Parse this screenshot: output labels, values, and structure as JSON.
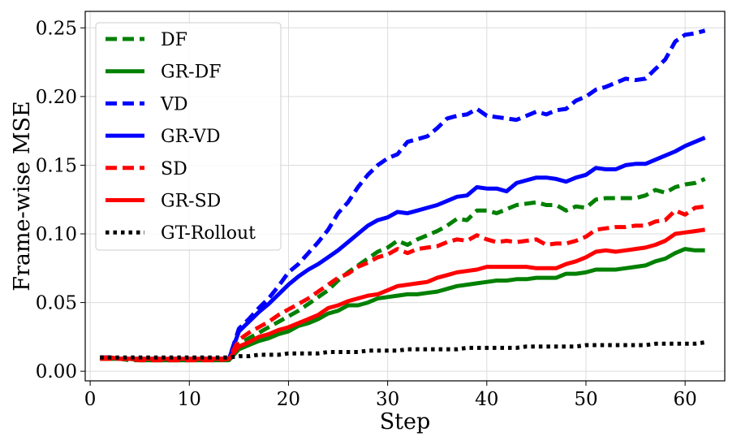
{
  "chart_data": {
    "type": "line",
    "title": "",
    "xlabel": "Step",
    "ylabel": "Frame-wise MSE",
    "xlim": [
      -0.5,
      64
    ],
    "ylim": [
      -0.007,
      0.262
    ],
    "xticks": [
      0,
      10,
      20,
      30,
      40,
      50,
      60
    ],
    "xtick_labels": [
      "0",
      "10",
      "20",
      "30",
      "40",
      "50",
      "60"
    ],
    "yticks": [
      0.0,
      0.05,
      0.1,
      0.15,
      0.2,
      0.25
    ],
    "ytick_labels": [
      "0.00",
      "0.05",
      "0.10",
      "0.15",
      "0.20",
      "0.25"
    ],
    "grid": true,
    "legend_position": "top-left",
    "x": [
      1,
      2,
      3,
      4,
      5,
      6,
      7,
      8,
      9,
      10,
      11,
      12,
      13,
      14,
      15,
      16,
      17,
      18,
      19,
      20,
      21,
      22,
      23,
      24,
      25,
      26,
      27,
      28,
      29,
      30,
      31,
      32,
      33,
      34,
      35,
      36,
      37,
      38,
      39,
      40,
      41,
      42,
      43,
      44,
      45,
      46,
      47,
      48,
      49,
      50,
      51,
      52,
      53,
      54,
      55,
      56,
      57,
      58,
      59,
      60,
      61,
      62
    ],
    "series": [
      {
        "name": "DF",
        "color": "#008000",
        "style": "dashed",
        "values": [
          0.009,
          0.009,
          0.009,
          0.008,
          0.008,
          0.008,
          0.008,
          0.008,
          0.008,
          0.008,
          0.009,
          0.009,
          0.009,
          0.009,
          0.02,
          0.024,
          0.028,
          0.032,
          0.036,
          0.04,
          0.044,
          0.049,
          0.054,
          0.059,
          0.066,
          0.072,
          0.077,
          0.082,
          0.087,
          0.09,
          0.095,
          0.092,
          0.096,
          0.099,
          0.102,
          0.106,
          0.111,
          0.11,
          0.117,
          0.117,
          0.115,
          0.118,
          0.121,
          0.122,
          0.123,
          0.121,
          0.121,
          0.117,
          0.12,
          0.119,
          0.125,
          0.126,
          0.126,
          0.126,
          0.126,
          0.128,
          0.132,
          0.13,
          0.134,
          0.136,
          0.137,
          0.14
        ]
      },
      {
        "name": "GR-DF",
        "color": "#008000",
        "style": "solid",
        "values": [
          0.009,
          0.009,
          0.009,
          0.009,
          0.008,
          0.008,
          0.008,
          0.008,
          0.008,
          0.008,
          0.008,
          0.008,
          0.008,
          0.008,
          0.016,
          0.019,
          0.022,
          0.024,
          0.027,
          0.029,
          0.033,
          0.035,
          0.038,
          0.042,
          0.044,
          0.048,
          0.048,
          0.05,
          0.053,
          0.054,
          0.055,
          0.056,
          0.056,
          0.057,
          0.058,
          0.06,
          0.062,
          0.063,
          0.064,
          0.065,
          0.066,
          0.066,
          0.067,
          0.067,
          0.068,
          0.068,
          0.068,
          0.071,
          0.071,
          0.072,
          0.074,
          0.074,
          0.074,
          0.075,
          0.076,
          0.077,
          0.08,
          0.082,
          0.086,
          0.089,
          0.088,
          0.088
        ]
      },
      {
        "name": "VD",
        "color": "#0000ff",
        "style": "dashed",
        "values": [
          0.01,
          0.01,
          0.009,
          0.009,
          0.009,
          0.009,
          0.009,
          0.009,
          0.009,
          0.009,
          0.009,
          0.009,
          0.009,
          0.009,
          0.031,
          0.038,
          0.046,
          0.053,
          0.062,
          0.072,
          0.078,
          0.086,
          0.094,
          0.103,
          0.115,
          0.123,
          0.134,
          0.143,
          0.15,
          0.155,
          0.158,
          0.167,
          0.169,
          0.171,
          0.177,
          0.184,
          0.186,
          0.187,
          0.191,
          0.186,
          0.185,
          0.184,
          0.183,
          0.186,
          0.189,
          0.187,
          0.19,
          0.191,
          0.197,
          0.2,
          0.205,
          0.207,
          0.21,
          0.213,
          0.212,
          0.213,
          0.22,
          0.227,
          0.24,
          0.245,
          0.246,
          0.248
        ]
      },
      {
        "name": "GR-VD",
        "color": "#0000ff",
        "style": "solid",
        "values": [
          0.01,
          0.01,
          0.009,
          0.009,
          0.009,
          0.009,
          0.009,
          0.009,
          0.009,
          0.009,
          0.009,
          0.009,
          0.009,
          0.009,
          0.029,
          0.036,
          0.043,
          0.049,
          0.056,
          0.063,
          0.069,
          0.074,
          0.078,
          0.083,
          0.088,
          0.094,
          0.1,
          0.106,
          0.11,
          0.112,
          0.116,
          0.115,
          0.117,
          0.119,
          0.121,
          0.124,
          0.127,
          0.128,
          0.134,
          0.133,
          0.133,
          0.131,
          0.137,
          0.139,
          0.141,
          0.141,
          0.14,
          0.138,
          0.141,
          0.143,
          0.148,
          0.147,
          0.147,
          0.15,
          0.151,
          0.151,
          0.154,
          0.157,
          0.16,
          0.164,
          0.167,
          0.17
        ]
      },
      {
        "name": "SD",
        "color": "#ff0000",
        "style": "dashed",
        "values": [
          0.009,
          0.009,
          0.009,
          0.009,
          0.008,
          0.008,
          0.008,
          0.008,
          0.008,
          0.008,
          0.008,
          0.008,
          0.008,
          0.009,
          0.023,
          0.028,
          0.032,
          0.036,
          0.041,
          0.045,
          0.049,
          0.053,
          0.058,
          0.063,
          0.068,
          0.071,
          0.076,
          0.079,
          0.083,
          0.085,
          0.089,
          0.086,
          0.089,
          0.09,
          0.091,
          0.094,
          0.096,
          0.095,
          0.099,
          0.096,
          0.094,
          0.095,
          0.094,
          0.095,
          0.096,
          0.092,
          0.093,
          0.093,
          0.095,
          0.098,
          0.103,
          0.104,
          0.105,
          0.105,
          0.106,
          0.106,
          0.109,
          0.11,
          0.117,
          0.114,
          0.119,
          0.12
        ]
      },
      {
        "name": "GR-SD",
        "color": "#ff0000",
        "style": "solid",
        "values": [
          0.01,
          0.01,
          0.009,
          0.009,
          0.009,
          0.009,
          0.009,
          0.009,
          0.009,
          0.009,
          0.009,
          0.009,
          0.009,
          0.009,
          0.018,
          0.021,
          0.025,
          0.027,
          0.03,
          0.032,
          0.035,
          0.038,
          0.041,
          0.046,
          0.048,
          0.051,
          0.053,
          0.055,
          0.056,
          0.059,
          0.062,
          0.063,
          0.064,
          0.065,
          0.068,
          0.07,
          0.072,
          0.073,
          0.074,
          0.076,
          0.076,
          0.076,
          0.076,
          0.076,
          0.075,
          0.075,
          0.075,
          0.078,
          0.08,
          0.083,
          0.087,
          0.088,
          0.087,
          0.088,
          0.089,
          0.09,
          0.092,
          0.095,
          0.1,
          0.101,
          0.102,
          0.103
        ]
      },
      {
        "name": "GT-Rollout",
        "color": "#000000",
        "style": "dotted",
        "values": [
          0.01,
          0.01,
          0.01,
          0.01,
          0.01,
          0.01,
          0.01,
          0.01,
          0.01,
          0.01,
          0.01,
          0.01,
          0.01,
          0.01,
          0.011,
          0.011,
          0.012,
          0.012,
          0.012,
          0.013,
          0.013,
          0.013,
          0.013,
          0.014,
          0.014,
          0.014,
          0.014,
          0.015,
          0.015,
          0.015,
          0.015,
          0.016,
          0.016,
          0.016,
          0.016,
          0.016,
          0.016,
          0.017,
          0.017,
          0.017,
          0.017,
          0.017,
          0.017,
          0.018,
          0.018,
          0.018,
          0.018,
          0.018,
          0.018,
          0.019,
          0.019,
          0.019,
          0.019,
          0.019,
          0.019,
          0.019,
          0.02,
          0.02,
          0.02,
          0.02,
          0.02,
          0.021
        ]
      }
    ]
  }
}
